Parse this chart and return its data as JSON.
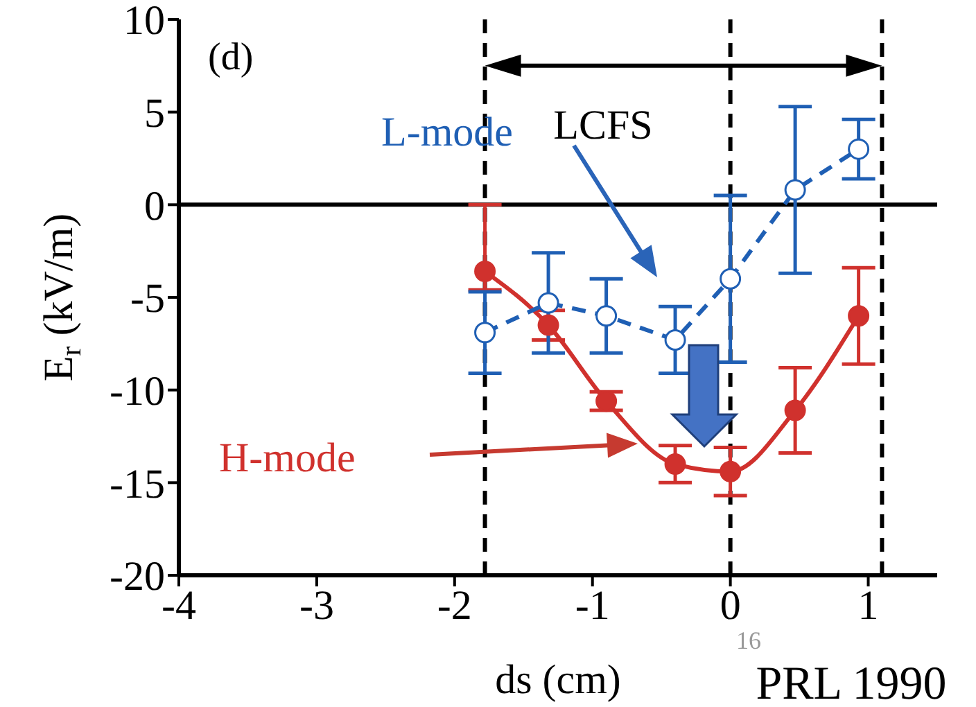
{
  "chart_data": {
    "type": "line",
    "xlabel": "ds (cm)",
    "ylabel": "E$_{r}$ (kV/m)",
    "xlim": [
      -4,
      1.5
    ],
    "xticks": [
      -4,
      -3,
      -2,
      -1,
      0,
      1
    ],
    "ylim": [
      -20,
      10
    ],
    "yticks": [
      -20,
      -15,
      -10,
      -5,
      0,
      5,
      10
    ],
    "marker": "circle",
    "series": [
      {
        "color": "#d0312d",
        "line_style": "solid",
        "x": [
          -1.78,
          -1.32,
          -0.9,
          -0.4,
          0,
          0.47,
          0.93
        ],
        "values": [
          -3.6,
          -6.5,
          -10.6,
          -14.0,
          -14.4,
          -11.1,
          -6.0
        ],
        "errors": [
          [
            -4.6,
            0
          ],
          0.8,
          0.5,
          1.0,
          1.3,
          2.3,
          2.6
        ]
      },
      {
        "color": "#1f5fb4",
        "line_style": "dashed",
        "x": [
          -1.78,
          -1.32,
          -0.9,
          -0.4,
          0,
          0.47,
          0.93
        ],
        "values": [
          -6.9,
          -5.3,
          -6.0,
          -7.3,
          -4.0,
          0.8,
          3.0
        ],
        "errors": [
          2.2,
          2.7,
          2.0,
          1.8,
          4.5,
          4.5,
          1.6
        ]
      }
    ],
    "ref_lines": [
      {
        "axis": "x",
        "value": -1.78,
        "line_style": "dashed",
        "color": "#000000"
      },
      {
        "axis": "x",
        "value": 0,
        "line_style": "dashed",
        "color": "#000000"
      },
      {
        "axis": "x",
        "value": 1.1,
        "line_style": "dashed",
        "color": "#000000"
      },
      {
        "axis": "y",
        "value": 0,
        "line_style": "solid",
        "color": "#000000"
      }
    ],
    "annotations": [
      "(d)",
      "LCFS",
      "L-mode",
      "H-mode",
      "PRL 1990",
      "16"
    ]
  }
}
